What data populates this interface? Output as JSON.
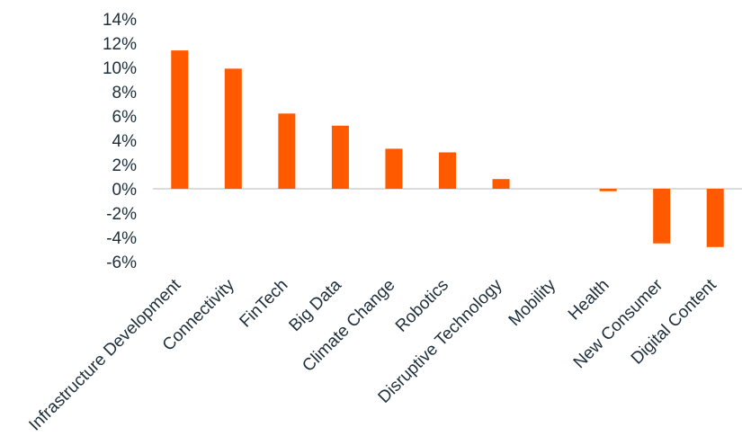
{
  "chart_data": {
    "type": "bar",
    "title": "",
    "xlabel": "",
    "ylabel": "",
    "ylim": [
      -6,
      14
    ],
    "y_ticks": [
      14,
      12,
      10,
      8,
      6,
      4,
      2,
      0,
      -2,
      -4,
      -6
    ],
    "y_tick_labels": [
      "14%",
      "12%",
      "10%",
      "8%",
      "6%",
      "4%",
      "2%",
      "0%",
      "-2%",
      "-4%",
      "-6%"
    ],
    "categories": [
      "Infrastructure Development",
      "Connectivity",
      "FinTech",
      "Big Data",
      "Climate Change",
      "Robotics",
      "Disruptive Technology",
      "Mobility",
      "Health",
      "New Consumer",
      "Digital Content"
    ],
    "values": [
      11.4,
      9.9,
      6.2,
      5.2,
      3.3,
      3.0,
      0.8,
      0.0,
      -0.2,
      -4.5,
      -4.8
    ],
    "bar_color": "#ff5a00",
    "grid": false,
    "legend": "none"
  }
}
